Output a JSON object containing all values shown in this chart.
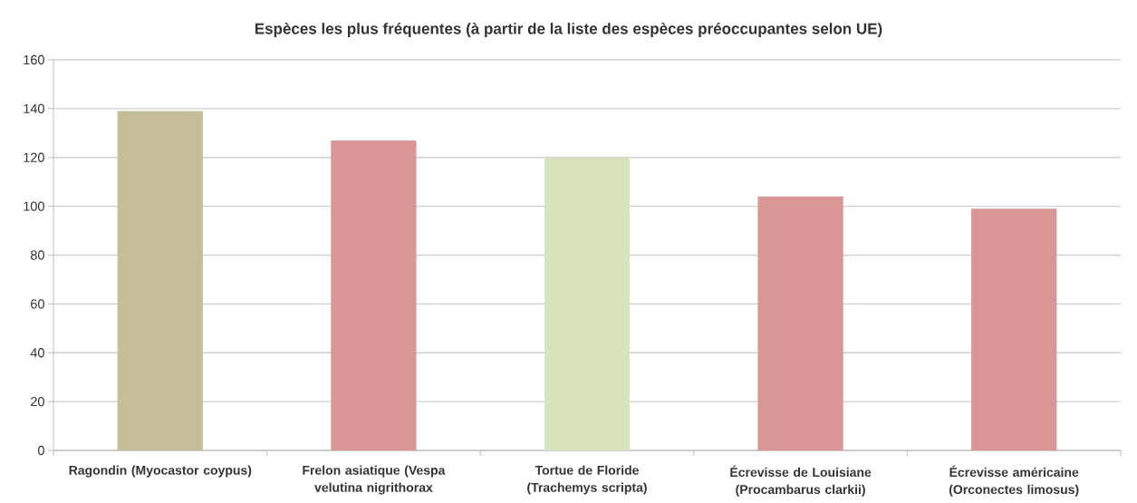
{
  "chart_data": {
    "type": "bar",
    "title": "Espèces les plus fréquentes (à partir de la liste des espèces préoccupantes selon UE)",
    "categories": [
      "Ragondin (Myocastor coypus)",
      "Frelon asiatique (Vespa velutina nigrithorax",
      "Tortue de Floride (Trachemys scripta)",
      "Écrevisse de Louisiane (Procambarus clarkii)",
      "Écrevisse américaine (Orconectes limosus)"
    ],
    "values": [
      139,
      127,
      120,
      104,
      99
    ],
    "colors": [
      "#c4bd97",
      "#d99694",
      "#d7e4bd",
      "#d99694",
      "#d99694"
    ],
    "ylim": [
      0,
      160
    ],
    "yticks": [
      0,
      20,
      40,
      60,
      80,
      100,
      120,
      140,
      160
    ],
    "grid": "y"
  }
}
